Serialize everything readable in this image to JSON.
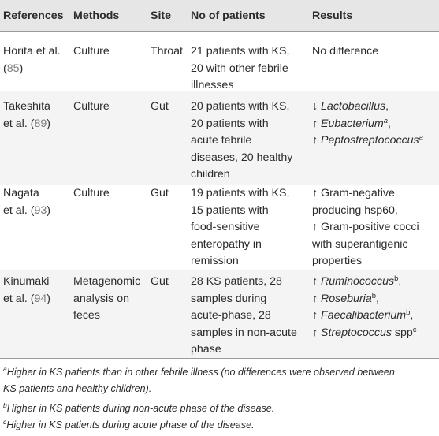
{
  "headers": {
    "references": "References",
    "methods": "Methods",
    "site": "Site",
    "patients": "No of patients",
    "results": "Results"
  },
  "rows": [
    {
      "ref_author_1": "Horita et al.",
      "ref_cite": "85",
      "method_1": "Culture",
      "site": "Throat",
      "patients_lines": [
        "21 patients with KS,",
        "20 with other febrile",
        "illnesses"
      ],
      "result_1": "No difference"
    },
    {
      "ref_author_1": "Takeshita",
      "ref_author_2": "et al.",
      "ref_cite": "89",
      "method_1": "Culture",
      "site": "Gut",
      "patients_lines": [
        "20 patients with KS,",
        "20 patients with",
        "acute febrile",
        "diseases, 20 healthy",
        "children"
      ],
      "results": [
        {
          "arrow": "↓",
          "taxon": "Lactobacillus",
          "sup": "",
          "tail": ","
        },
        {
          "arrow": "↑",
          "taxon": "Eubacterium",
          "sup": "a",
          "tail": ","
        },
        {
          "arrow": "↑",
          "taxon": "Peptostreptococcus",
          "sup": "a",
          "tail": ""
        }
      ]
    },
    {
      "ref_author_1": "Nagata",
      "ref_author_2": "et al.",
      "ref_cite": "93",
      "method_1": "Culture",
      "site": "Gut",
      "patients_lines": [
        "19 patients with KS,",
        "15 patients with",
        "food-sensitive",
        "enteropathy in",
        "remission"
      ],
      "result_lines": [
        "↑ Gram-negative",
        "producing hsp60,",
        "↑ Gram-positive cocci",
        "with superantigenic",
        "properties"
      ]
    },
    {
      "ref_author_1": "Kinumaki",
      "ref_author_2": "et al.",
      "ref_cite": "94",
      "method_1": "Metagenomic",
      "method_2": "analysis on",
      "method_3": "feces",
      "site": "Gut",
      "patients_lines": [
        "28 KS patients, 28",
        "samples during",
        "acute-phase, 28",
        "samples in non-acute",
        "phase"
      ],
      "results": [
        {
          "arrow": "↑",
          "taxon": "Ruminococcus",
          "sup": "b",
          "tail": ","
        },
        {
          "arrow": "↑",
          "taxon": "Roseburia",
          "sup": "b",
          "tail": ","
        },
        {
          "arrow": "↑",
          "taxon": "Faecalibacterium",
          "sup": "b",
          "tail": ","
        },
        {
          "arrow": "↑",
          "taxon": "Streptococcus",
          "sup": "c",
          "tail": " spp"
        }
      ]
    }
  ],
  "footnotes": [
    {
      "mark": "a",
      "lines": [
        "Higher in KS patients than in other febrile illness (no differences were observed between",
        "KS patients and healthy children)."
      ]
    },
    {
      "mark": "b",
      "lines": [
        "Higher in KS patients during non-acute phase of the disease."
      ]
    },
    {
      "mark": "c",
      "lines": [
        "Higher in KS patients during acute phase of the disease."
      ]
    }
  ]
}
